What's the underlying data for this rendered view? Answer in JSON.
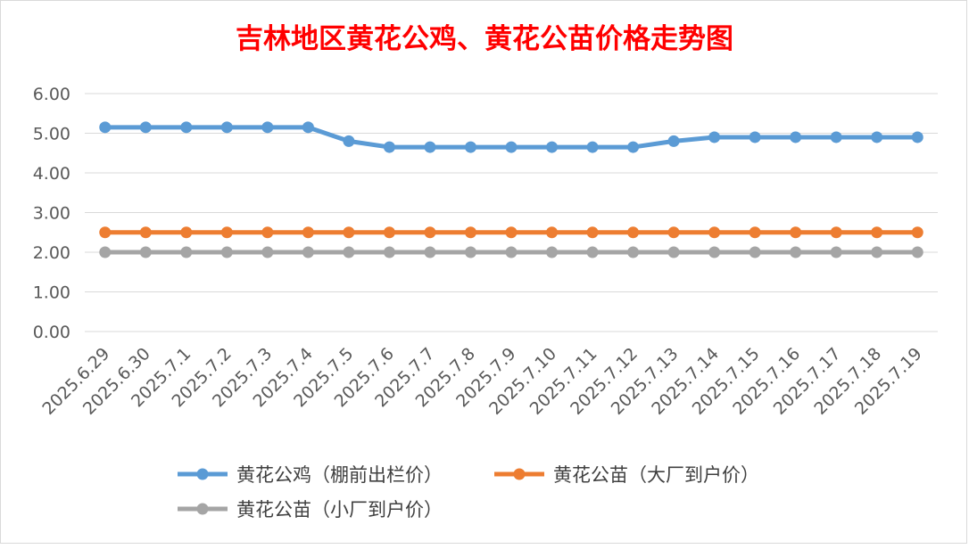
{
  "chart_data": {
    "type": "line",
    "title": "吉林地区黄花公鸡、黄花公苗价格走势图",
    "title_color": "#ff0000",
    "categories": [
      "2025.6.29",
      "2025.6.30",
      "2025.7.1",
      "2025.7.2",
      "2025.7.3",
      "2025.7.4",
      "2025.7.5",
      "2025.7.6",
      "2025.7.7",
      "2025.7.8",
      "2025.7.9",
      "2025.7.10",
      "2025.7.11",
      "2025.7.12",
      "2025.7.13",
      "2025.7.14",
      "2025.7.15",
      "2025.7.16",
      "2025.7.17",
      "2025.7.18",
      "2025.7.19"
    ],
    "yticks": [
      "0.00",
      "1.00",
      "2.00",
      "3.00",
      "4.00",
      "5.00",
      "6.00"
    ],
    "ylim": [
      0,
      6
    ],
    "grid": true,
    "legend_position": "bottom",
    "series": [
      {
        "name": "黄花公鸡（棚前出栏价）",
        "color": "#5b9bd5",
        "values": [
          5.15,
          5.15,
          5.15,
          5.15,
          5.15,
          5.15,
          4.8,
          4.65,
          4.65,
          4.65,
          4.65,
          4.65,
          4.65,
          4.65,
          4.8,
          4.9,
          4.9,
          4.9,
          4.9,
          4.9,
          4.9
        ]
      },
      {
        "name": "黄花公苗（大厂到户价）",
        "color": "#ed7d31",
        "values": [
          2.5,
          2.5,
          2.5,
          2.5,
          2.5,
          2.5,
          2.5,
          2.5,
          2.5,
          2.5,
          2.5,
          2.5,
          2.5,
          2.5,
          2.5,
          2.5,
          2.5,
          2.5,
          2.5,
          2.5,
          2.5
        ]
      },
      {
        "name": "黄花公苗（小厂到户价）",
        "color": "#a5a5a5",
        "values": [
          2.0,
          2.0,
          2.0,
          2.0,
          2.0,
          2.0,
          2.0,
          2.0,
          2.0,
          2.0,
          2.0,
          2.0,
          2.0,
          2.0,
          2.0,
          2.0,
          2.0,
          2.0,
          2.0,
          2.0,
          2.0
        ]
      }
    ]
  }
}
